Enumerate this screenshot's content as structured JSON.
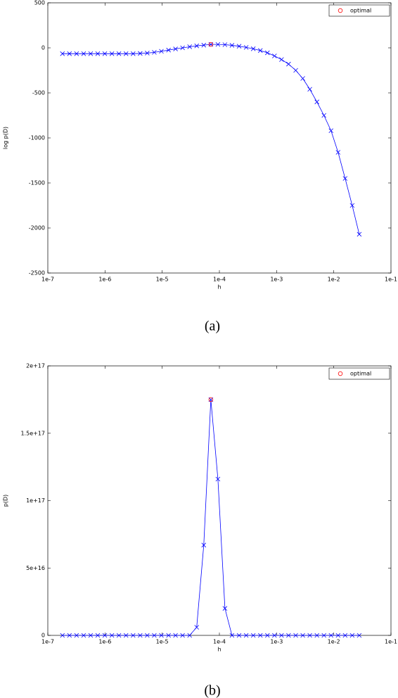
{
  "chart_data": [
    {
      "type": "line",
      "caption": "(a)",
      "x_label": "h",
      "y_label": "log p(D)",
      "x_scale": "log",
      "legend": "upper right",
      "xlim": [
        1e-07,
        0.1
      ],
      "xticks": [
        {
          "value": 1e-07,
          "label": "1e-7"
        },
        {
          "value": 1e-06,
          "label": "1e-6"
        },
        {
          "value": 1e-05,
          "label": "1e-5"
        },
        {
          "value": 0.0001,
          "label": "1e-4"
        },
        {
          "value": 0.001,
          "label": "1e-3"
        },
        {
          "value": 0.01,
          "label": "1e-2"
        },
        {
          "value": 0.1,
          "label": "1e-1"
        }
      ],
      "ylim": [
        -2500,
        500
      ],
      "yticks": [
        -2500,
        -2000,
        -1500,
        -1000,
        -500,
        0,
        500
      ],
      "x": [
        1.8e-07,
        2.39e-07,
        3.18e-07,
        4.23e-07,
        5.61e-07,
        7.46e-07,
        9.92e-07,
        1.32e-06,
        1.75e-06,
        2.33e-06,
        3.1e-06,
        4.12e-06,
        5.47e-06,
        7.27e-06,
        9.67e-06,
        1.29e-05,
        1.71e-05,
        2.27e-05,
        3.02e-05,
        4.01e-05,
        5.33e-05,
        7.09e-05,
        9.42e-05,
        0.000125,
        0.000166,
        0.000221,
        0.000294,
        0.000391,
        0.00052,
        0.000691,
        0.000918,
        0.00122,
        0.00162,
        0.00216,
        0.00287,
        0.00381,
        0.00507,
        0.00673,
        0.00895,
        0.0119,
        0.0158,
        0.021,
        0.0279
      ],
      "series": [
        {
          "color": "#0000ff",
          "marker": "x",
          "values": [
            -65,
            -65,
            -65,
            -65,
            -65,
            -65,
            -65,
            -65,
            -65,
            -65,
            -65,
            -62,
            -58,
            -50,
            -38,
            -25,
            -12,
            0,
            12,
            22,
            30,
            38,
            38,
            35,
            28,
            18,
            5,
            -10,
            -30,
            -55,
            -90,
            -130,
            -180,
            -250,
            -340,
            -460,
            -600,
            -750,
            -920,
            -1160,
            -1450,
            -1750,
            -2070
          ]
        },
        {
          "name": "optimal",
          "color": "#ff0000",
          "marker": "o",
          "x": [
            7.09e-05
          ],
          "values": [
            38
          ]
        }
      ]
    },
    {
      "type": "line",
      "caption": "(b)",
      "x_label": "h",
      "y_label": "p(D)",
      "x_scale": "log",
      "legend": "upper right",
      "xlim": [
        1e-07,
        0.1
      ],
      "xticks": [
        {
          "value": 1e-07,
          "label": "1e-7"
        },
        {
          "value": 1e-06,
          "label": "1e-6"
        },
        {
          "value": 1e-05,
          "label": "1e-5"
        },
        {
          "value": 0.0001,
          "label": "1e-4"
        },
        {
          "value": 0.001,
          "label": "1e-3"
        },
        {
          "value": 0.01,
          "label": "1e-2"
        },
        {
          "value": 0.1,
          "label": "1e-1"
        }
      ],
      "ylim": [
        0,
        2e+17
      ],
      "yticks": [
        0,
        {
          "value": 5e+16,
          "label": "5e+16"
        },
        {
          "value": 1e+17,
          "label": "1e+17"
        },
        {
          "value": 1.5e+17,
          "label": "1.5e+17"
        },
        {
          "value": 2e+17,
          "label": "2e+17"
        }
      ],
      "x": [
        1.8e-07,
        2.39e-07,
        3.18e-07,
        4.23e-07,
        5.61e-07,
        7.46e-07,
        9.92e-07,
        1.32e-06,
        1.75e-06,
        2.33e-06,
        3.1e-06,
        4.12e-06,
        5.47e-06,
        7.27e-06,
        9.67e-06,
        1.29e-05,
        1.71e-05,
        2.27e-05,
        3.02e-05,
        4.01e-05,
        5.33e-05,
        7.09e-05,
        9.42e-05,
        0.000125,
        0.000166,
        0.000221,
        0.000294,
        0.000391,
        0.00052,
        0.000691,
        0.000918,
        0.00122,
        0.00162,
        0.00216,
        0.00287,
        0.00381,
        0.00507,
        0.00673,
        0.00895,
        0.0119,
        0.0158,
        0.021,
        0.0279
      ],
      "series": [
        {
          "color": "#0000ff",
          "marker": "x",
          "values": [
            0,
            0,
            0,
            0,
            0,
            0,
            0,
            0,
            0,
            0,
            0,
            0,
            0,
            0,
            0,
            0,
            0,
            0,
            0,
            6000000000000000.0,
            6.7e+16,
            1.75e+17,
            1.16e+17,
            2e+16,
            0,
            0,
            0,
            0,
            0,
            0,
            0,
            0,
            0,
            0,
            0,
            0,
            0,
            0,
            0,
            0,
            0,
            0,
            0
          ]
        },
        {
          "name": "optimal",
          "color": "#ff0000",
          "marker": "o",
          "x": [
            7.09e-05
          ],
          "values": [
            1.75e+17
          ]
        }
      ]
    }
  ]
}
